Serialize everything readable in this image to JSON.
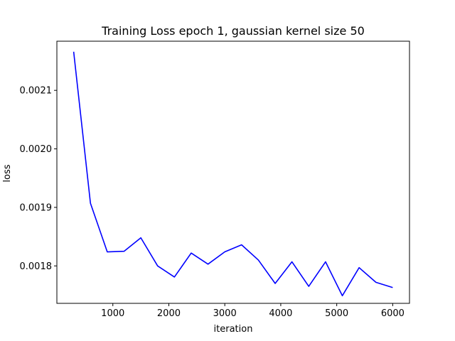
{
  "chart_data": {
    "type": "line",
    "title": "Training Loss epoch 1, gaussian kernel size 50",
    "xlabel": "iteration",
    "ylabel": "loss",
    "xlim": [
      0,
      6300
    ],
    "ylim": [
      0.001736,
      0.002184
    ],
    "xticks": [
      1000,
      2000,
      3000,
      4000,
      5000,
      6000
    ],
    "xtick_labels": [
      "1000",
      "2000",
      "3000",
      "4000",
      "5000",
      "6000"
    ],
    "yticks": [
      0.0018,
      0.0019,
      0.002,
      0.0021
    ],
    "ytick_labels": [
      "0.0018",
      "0.0019",
      "0.0020",
      "0.0021"
    ],
    "grid": false,
    "series": [
      {
        "color": "#0000ff",
        "x": [
          300,
          600,
          900,
          1200,
          1500,
          1800,
          2100,
          2400,
          2700,
          3000,
          3300,
          3600,
          3900,
          4200,
          4500,
          4800,
          5100,
          5400,
          5700,
          6000
        ],
        "y": [
          0.002166,
          0.001907,
          0.001824,
          0.001825,
          0.001848,
          0.0018,
          0.001781,
          0.001822,
          0.001803,
          0.001824,
          0.001836,
          0.00181,
          0.00177,
          0.001807,
          0.001765,
          0.001807,
          0.001749,
          0.001797,
          0.001772,
          0.001763
        ]
      }
    ]
  }
}
